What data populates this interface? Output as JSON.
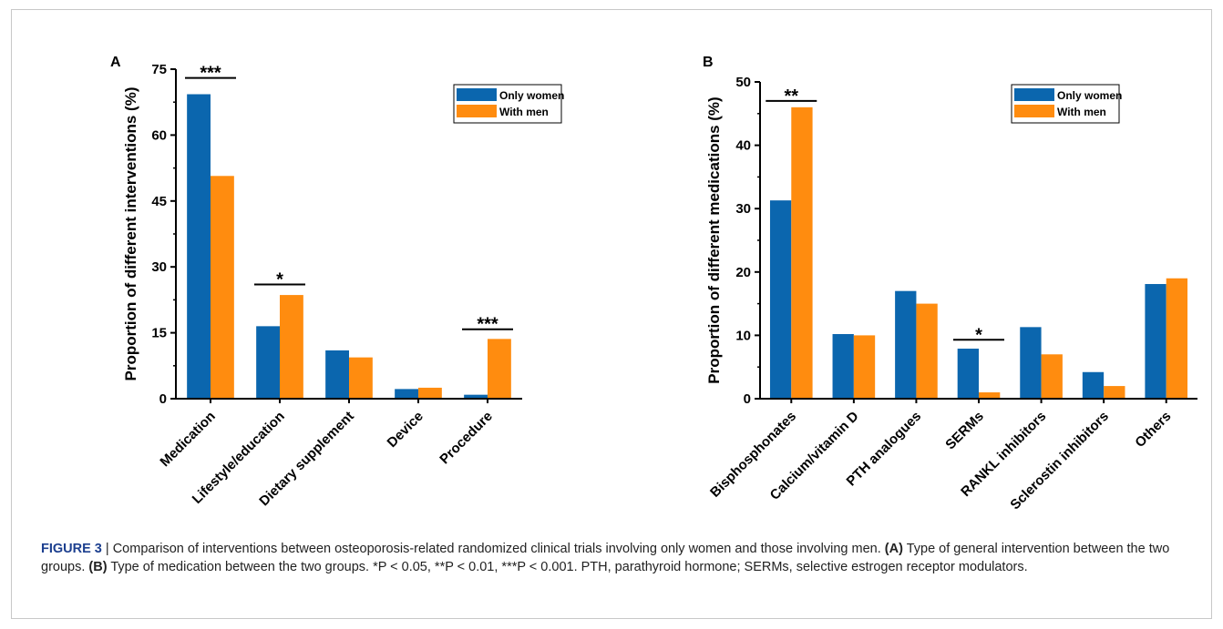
{
  "colors": {
    "only_women": "#0b66ae",
    "with_men": "#ff8c0f",
    "axis": "#000000"
  },
  "chart_data": [
    {
      "type": "bar",
      "panel_label": "A",
      "ylabel": "Proportion of different interventions (%)",
      "xlabel": "",
      "ylim": [
        0,
        75
      ],
      "yticks": [
        0,
        15,
        30,
        45,
        60,
        75
      ],
      "categories": [
        "Medication",
        "Lifestyle/education",
        "Dietary supplement",
        "Device",
        "Procedure"
      ],
      "series": [
        {
          "name": "Only women",
          "values": [
            69.3,
            16.5,
            11.0,
            2.2,
            0.9
          ]
        },
        {
          "name": "With men",
          "values": [
            50.7,
            23.6,
            9.4,
            2.5,
            13.6
          ]
        }
      ],
      "significance": [
        {
          "category_index": 0,
          "label": "***",
          "y": 73
        },
        {
          "category_index": 1,
          "label": "*",
          "y": 26
        },
        {
          "category_index": 4,
          "label": "***",
          "y": 15.8
        }
      ],
      "legend_position": "top-right"
    },
    {
      "type": "bar",
      "panel_label": "B",
      "ylabel": "Proportion of different medications (%)",
      "xlabel": "",
      "ylim": [
        0,
        50
      ],
      "yticks": [
        0,
        10,
        20,
        30,
        40,
        50
      ],
      "categories": [
        "Bisphosphonates",
        "Calcium/vitamin D",
        "PTH analogues",
        "SERMs",
        "RANKL inhibitors",
        "Sclerostin inhibitors",
        "Others"
      ],
      "series": [
        {
          "name": "Only women",
          "values": [
            31.3,
            10.2,
            17.0,
            7.9,
            11.3,
            4.2,
            18.1
          ]
        },
        {
          "name": "With men",
          "values": [
            46.0,
            10.0,
            15.0,
            1.0,
            7.0,
            2.0,
            19.0
          ]
        }
      ],
      "significance": [
        {
          "category_index": 0,
          "label": "**",
          "y": 47
        },
        {
          "category_index": 3,
          "label": "*",
          "y": 9.3
        }
      ],
      "legend_position": "top-right"
    }
  ],
  "caption": {
    "figure_label": "FIGURE 3",
    "separator": " | ",
    "intro": "Comparison of interventions between osteoporosis-related randomized clinical trials involving only women and those involving men. ",
    "a_label": "(A)",
    "a_text": " Type of general intervention between the two groups. ",
    "b_label": "(B)",
    "b_text": " Type of medication between the two groups.  *P < 0.05, **P < 0.01, ***P < 0.001. PTH, parathyroid hormone; SERMs, selective estrogen receptor modulators."
  }
}
